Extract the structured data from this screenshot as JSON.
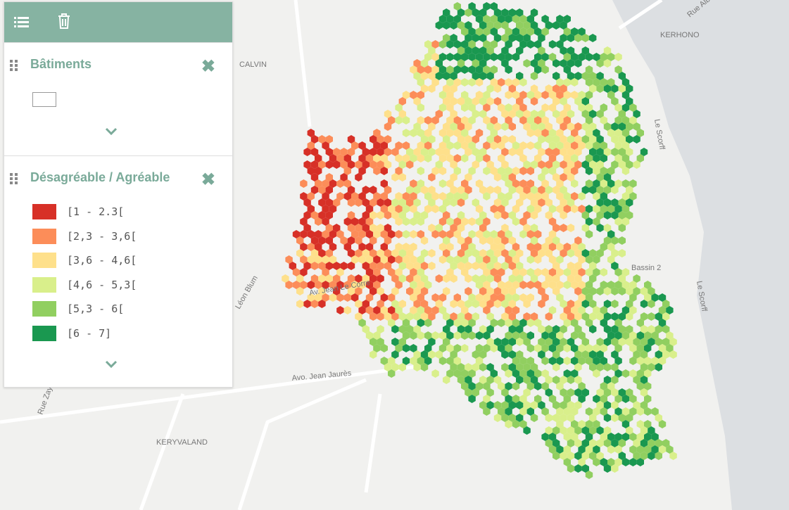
{
  "layers": [
    {
      "title": "Bâtiments"
    },
    {
      "title": "Désagréable / Agréable",
      "legend": [
        {
          "label": "[1 - 2.3[",
          "color": "#d73027"
        },
        {
          "label": "[2,3 - 3,6[",
          "color": "#fc8d59"
        },
        {
          "label": "[3,6 - 4,6[",
          "color": "#fee08b"
        },
        {
          "label": "[4,6 - 5,3[",
          "color": "#d9ef8b"
        },
        {
          "label": "[5,3 - 6[",
          "color": "#91cf60"
        },
        {
          "label": "[6 - 7]",
          "color": "#1a9850"
        }
      ]
    }
  ],
  "map_labels": [
    "KERHONO",
    "CALVIN",
    "KERYVALAND",
    "Bassin 2",
    "Le Scorff",
    "Le Scorff",
    "Avo. Jean Jaurès",
    "Rue Albert",
    "Rue Zay",
    "Léon Blum",
    "Av. Jean Le Corre"
  ]
}
